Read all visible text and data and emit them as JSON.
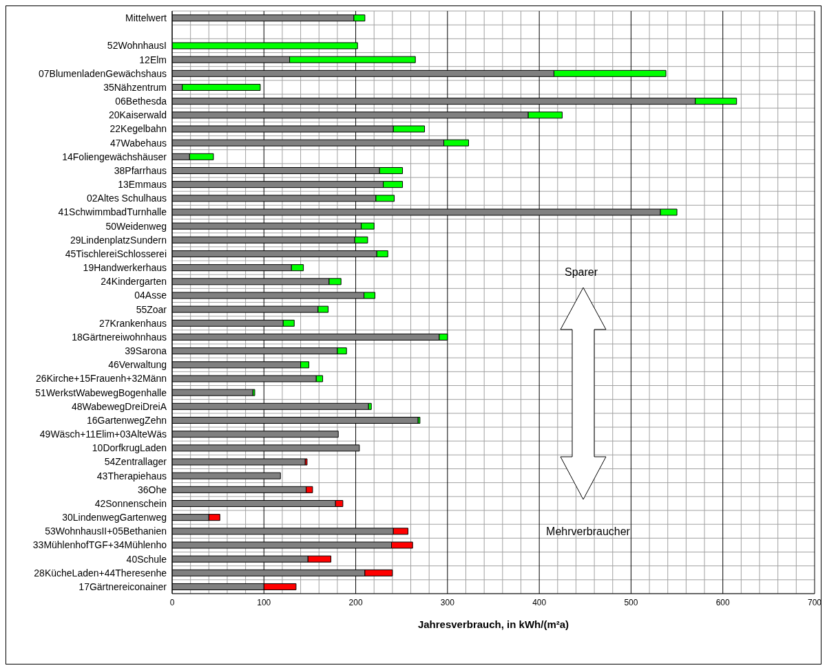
{
  "chart_data": {
    "type": "bar",
    "orientation": "horizontal",
    "stacked": true,
    "xlabel": "Jahresverbrauch, in kWh/(m²a)",
    "categories": [
      "Mittelwert",
      null,
      "52WohnhausI",
      "12Elm",
      "07BlumenladenGewächshaus",
      "35Nähzentrum",
      "06Bethesda",
      "20Kaiserwald",
      "22Kegelbahn",
      "47Wabehaus",
      "14Foliengewächshäuser",
      "38Pfarrhaus",
      "13Emmaus",
      "02Altes Schulhaus",
      "41SchwimmbadTurnhalle",
      "50Weidenweg",
      "29LindenplatzSundern",
      "45TischlereiSchlosserei",
      "19Handwerkerhaus",
      "24Kindergarten",
      "04Asse",
      "55Zoar",
      "27Krankenhaus",
      "18Gärtnereiwohnhaus",
      "39Sarona",
      "46Verwaltung",
      "26Kirche+15Frauenh+32Männ",
      "51WerkstWabewegBogenhalle",
      "48WabewegDreiDreiA",
      "16GartenwegZehn",
      "49Wäsch+11Elim+03AlteWäs",
      "10DorfkrugLaden",
      "54Zentrallager",
      "43Therapiehaus",
      "36Ohe",
      "42Sonnenschein",
      "30LindenwegGartenweg",
      "53WohnhausII+05Bethanien",
      "33MühlenhofTGF+34Mühlenho",
      "40Schule",
      "28KücheLaden+44Theresenhe",
      "17Gärtnereiconainer"
    ],
    "series": [
      {
        "color": "#808080",
        "values": [
          198,
          null,
          null,
          128,
          416,
          11,
          570,
          388,
          241,
          296,
          19,
          226,
          230,
          222,
          532,
          206,
          199,
          223,
          130,
          171,
          209,
          159,
          121,
          291,
          180,
          140,
          157,
          88,
          214,
          268,
          181,
          204,
          145,
          118,
          146,
          178,
          40,
          241,
          239,
          148,
          210,
          100
        ]
      },
      {
        "colors": [
          "#00ff00",
          null,
          "#00ff00",
          "#00ff00",
          "#00ff00",
          "#00ff00",
          "#00ff00",
          "#00ff00",
          "#00ff00",
          "#00ff00",
          "#00ff00",
          "#00ff00",
          "#00ff00",
          "#00ff00",
          "#00ff00",
          "#00ff00",
          "#00ff00",
          "#00ff00",
          "#00ff00",
          "#00ff00",
          "#00ff00",
          "#00ff00",
          "#00ff00",
          "#00ff00",
          "#00ff00",
          "#00ff00",
          "#00ff00",
          "#00ff00",
          "#00ff00",
          "#00ff00",
          null,
          null,
          "#ff0000",
          null,
          "#ff0000",
          "#ff0000",
          "#ff0000",
          "#ff0000",
          "#ff0000",
          "#ff0000",
          "#ff0000",
          "#ff0000"
        ],
        "values": [
          12,
          null,
          202,
          137,
          122,
          85,
          45,
          37,
          34,
          27,
          26,
          25,
          21,
          20,
          18,
          14,
          14,
          12,
          13,
          13,
          12,
          11,
          12,
          9,
          10,
          9,
          7,
          2,
          3,
          2,
          null,
          null,
          2,
          null,
          7,
          8,
          12,
          16,
          23,
          25,
          30,
          35
        ]
      }
    ],
    "xlim": [
      0,
      700
    ],
    "xticks": [
      0,
      {
        "value": 20,
        "label": null
      },
      {
        "value": 40,
        "label": null
      },
      {
        "value": 60,
        "label": null
      },
      {
        "value": 80,
        "label": null
      },
      100,
      {
        "value": 120,
        "label": null
      },
      {
        "value": 140,
        "label": null
      },
      {
        "value": 160,
        "label": null
      },
      {
        "value": 180,
        "label": null
      },
      200,
      {
        "value": 220,
        "label": null
      },
      {
        "value": 240,
        "label": null
      },
      {
        "value": 260,
        "label": null
      },
      {
        "value": 280,
        "label": null
      },
      300,
      {
        "value": 320,
        "label": null
      },
      {
        "value": 340,
        "label": null
      },
      {
        "value": 360,
        "label": null
      },
      {
        "value": 380,
        "label": null
      },
      400,
      {
        "value": 420,
        "label": null
      },
      {
        "value": 440,
        "label": null
      },
      {
        "value": 460,
        "label": null
      },
      {
        "value": 480,
        "label": null
      },
      500,
      {
        "value": 520,
        "label": null
      },
      {
        "value": 540,
        "label": null
      },
      {
        "value": 560,
        "label": null
      },
      {
        "value": 580,
        "label": null
      },
      600,
      {
        "value": 620,
        "label": null
      },
      {
        "value": 640,
        "label": null
      },
      {
        "value": 660,
        "label": null
      },
      {
        "value": 680,
        "label": null
      },
      700
    ],
    "grid": true,
    "annotations": [
      "Sparer",
      "Mehrverbraucher"
    ]
  }
}
